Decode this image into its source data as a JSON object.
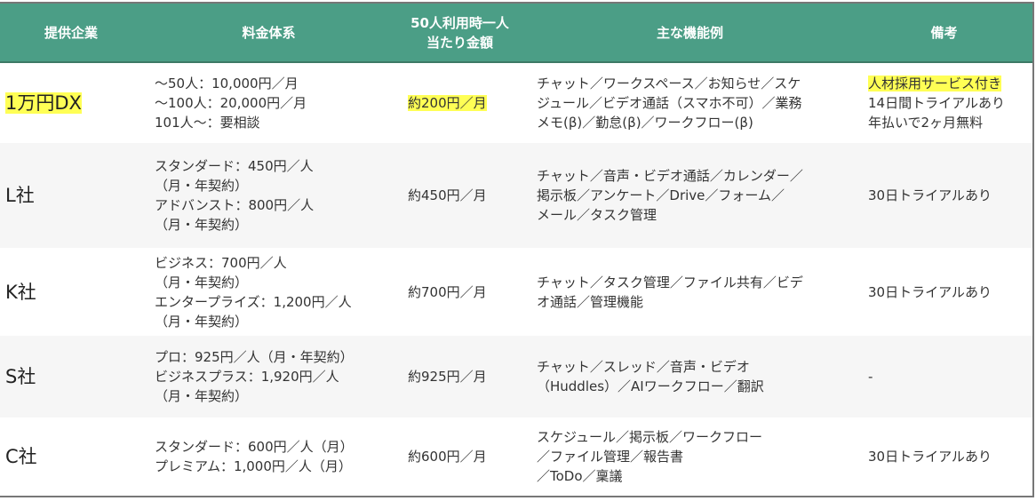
{
  "headers": [
    "提供企業",
    "料金体系",
    "50人利用時一人\n当たり金額",
    "主な機能例",
    "備考"
  ],
  "header_line2": "当たり金額",
  "header_line1": "50人利用時一人",
  "rows": [
    {
      "company": "1万円DX",
      "pricing": [
        "〜50人：10,000円／月",
        "〜100人：20,000円／月",
        "101人〜：要相談"
      ],
      "per_person": "約200円／月",
      "features": [
        "チャット／ワークスペース／お知らせ／スケ",
        "ジュール／ビデオ通話（スマホ不可）／業務",
        "メモ(β)／勤怠(β)／ワークフロー(β)"
      ],
      "notes": [
        "人材採用サービス付き",
        "14日間トライアルあり",
        "年払いで2ヶ月無料"
      ],
      "highlighted": true
    },
    {
      "company": "L社",
      "pricing": [
        "スタンダード：450円／人",
        "（月・年契約）",
        "アドバンスト：800円／人",
        "（月・年契約）"
      ],
      "per_person": "約450円／月",
      "features": [
        "チャット／音声・ビデオ通話／カレンダー／",
        "掲示板／アンケート／Drive／フォーム／",
        "メール／タスク管理"
      ],
      "notes": [
        "30日トライアルあり"
      ]
    },
    {
      "company": "K社",
      "pricing": [
        "ビジネス：700円／人",
        "（月・年契約）",
        "エンタープライズ：1,200円／人",
        "（月・年契約）"
      ],
      "per_person": "約700円／月",
      "features": [
        "チャット／タスク管理／ファイル共有／ビデ",
        "オ通話／管理機能"
      ],
      "notes": [
        "30日トライアルあり"
      ]
    },
    {
      "company": "S社",
      "pricing": [
        "プロ：925円／人（月・年契約）",
        "ビジネスプラス：1,920円／人",
        "（月・年契約）"
      ],
      "per_person": "約925円／月",
      "features": [
        "チャット／スレッド／音声・ビデオ",
        "（Huddles）／AIワークフロー／翻訳"
      ],
      "notes": [
        "-"
      ]
    },
    {
      "company": "C社",
      "pricing": [
        "スタンダード：600円／人（月）",
        "プレミアム：1,000円／人（月）"
      ],
      "per_person": "約600円／月",
      "features": [
        "スケジュール／掲示板／ワークフロー",
        "／ファイル管理／報告書",
        "／ToDo／稟議"
      ],
      "notes": [
        "30日トライアルあり"
      ]
    }
  ],
  "colors": {
    "header": "#4b9e86",
    "highlight": "#ffff55"
  }
}
